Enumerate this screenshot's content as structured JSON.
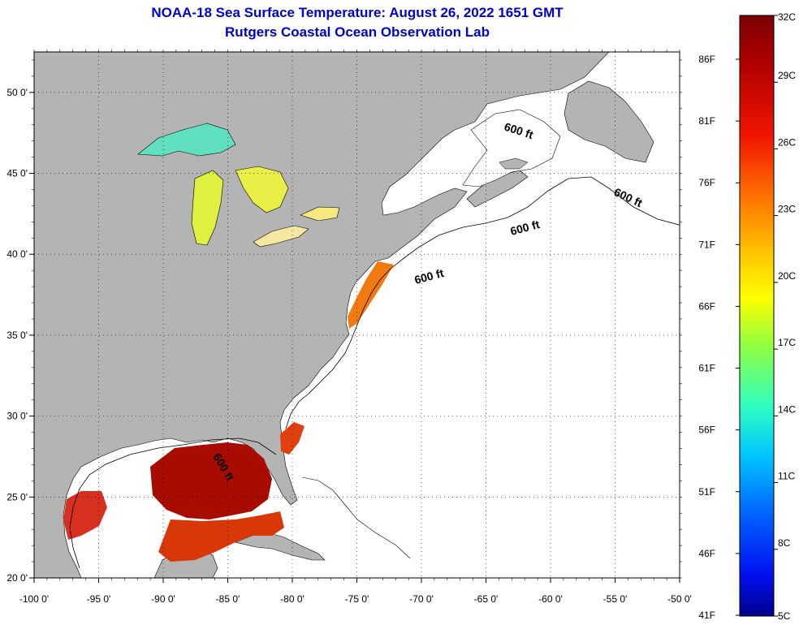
{
  "title": {
    "line1": "NOAA-18 Sea Surface Temperature:  August 26, 2022 1651 GMT",
    "line2": "Rutgers Coastal Ocean Observation Lab"
  },
  "map": {
    "lon_range": [
      -100,
      -50
    ],
    "lat_range": [
      20,
      52.5
    ],
    "lon_ticks": [
      {
        "value": -100,
        "label": "-100 0'"
      },
      {
        "value": -95,
        "label": "-95 0'"
      },
      {
        "value": -90,
        "label": "-90 0'"
      },
      {
        "value": -85,
        "label": "-85 0'"
      },
      {
        "value": -80,
        "label": "-80 0'"
      },
      {
        "value": -75,
        "label": "-75 0'"
      },
      {
        "value": -70,
        "label": "-70 0'"
      },
      {
        "value": -65,
        "label": "-65 0'"
      },
      {
        "value": -60,
        "label": "-60 0'"
      },
      {
        "value": -55,
        "label": "-55 0'"
      },
      {
        "value": -50,
        "label": "-50 0'"
      }
    ],
    "lat_ticks": [
      {
        "value": 20,
        "label": "20 0'"
      },
      {
        "value": 25,
        "label": "25 0'"
      },
      {
        "value": 30,
        "label": "30 0'"
      },
      {
        "value": 35,
        "label": "35 0'"
      },
      {
        "value": 40,
        "label": "40 0'"
      },
      {
        "value": 45,
        "label": "45 0'"
      },
      {
        "value": 50,
        "label": "50 0'"
      }
    ],
    "depth_labels": [
      "600 ft",
      "600 ft",
      "600 ft",
      "600 ft",
      "600 ft"
    ],
    "land_color": "#b4b4b4",
    "ocean_color": "#ffffff"
  },
  "colorbar": {
    "celsius_labels": [
      "32C",
      "29C",
      "26C",
      "23C",
      "20C",
      "17C",
      "14C",
      "11C",
      "8C",
      "5C"
    ],
    "fahrenheit_labels": [
      "86F",
      "81F",
      "76F",
      "71F",
      "66F",
      "61F",
      "56F",
      "51F",
      "46F",
      "41F"
    ],
    "colors_top_to_bottom": [
      "#800000",
      "#d00000",
      "#ff2000",
      "#ff7000",
      "#ffc000",
      "#ffff00",
      "#a0ff40",
      "#40ffc0",
      "#00d0ff",
      "#0070ff",
      "#0010ff",
      "#000090"
    ]
  }
}
